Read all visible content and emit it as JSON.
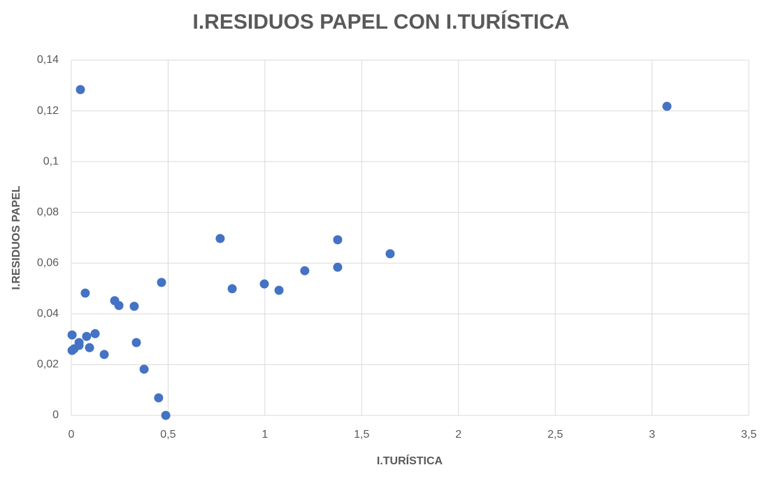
{
  "chart_data": {
    "type": "scatter",
    "title": "I.RESIDUOS PAPEL CON I.TURÍSTICA",
    "x_label": "I.TURÍSTICA",
    "y_label": "I.RESIDUOS PAPEL",
    "series": [
      {
        "name": "I.RESIDUOS PAPEL",
        "color": "#4472c4",
        "x": [
          0.047,
          3.077,
          0.769,
          1.376,
          1.647,
          1.376,
          1.206,
          0.466,
          0.997,
          0.831,
          1.073,
          0.072,
          0.224,
          0.246,
          0.325,
          0.004,
          0.123,
          0.079,
          0.336,
          0.04,
          0.04,
          0.094,
          0.004,
          0.014,
          0.17,
          0.376,
          0.451,
          0.488
        ],
        "values": [
          0.1284,
          0.1218,
          0.0697,
          0.0692,
          0.0637,
          0.0584,
          0.057,
          0.0524,
          0.0518,
          0.0499,
          0.0493,
          0.0482,
          0.0452,
          0.0433,
          0.043,
          0.0317,
          0.0322,
          0.0311,
          0.0287,
          0.0287,
          0.0276,
          0.0267,
          0.0256,
          0.0262,
          0.024,
          0.0182,
          0.0069,
          0.0
        ]
      }
    ],
    "xlim": [
      0,
      3.5
    ],
    "xticks": [
      0,
      {
        "value": 0.5,
        "label": "0,5"
      },
      1,
      {
        "value": 1.5,
        "label": "1,5"
      },
      2,
      {
        "value": 2.5,
        "label": "2,5"
      },
      3,
      {
        "value": 3.5,
        "label": "3,5"
      }
    ],
    "ylim": [
      0,
      0.14
    ],
    "yticks": [
      0,
      {
        "value": 0.02,
        "label": "0,02"
      },
      {
        "value": 0.04,
        "label": "0,04"
      },
      {
        "value": 0.06,
        "label": "0,06"
      },
      {
        "value": 0.08,
        "label": "0,08"
      },
      {
        "value": 0.1,
        "label": "0,1"
      },
      {
        "value": 0.12,
        "label": "0,12"
      },
      {
        "value": 0.14,
        "label": "0,14"
      }
    ],
    "grid": true
  }
}
